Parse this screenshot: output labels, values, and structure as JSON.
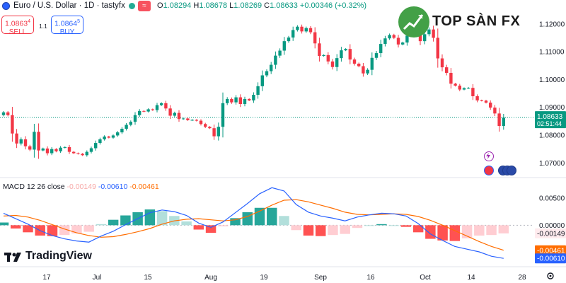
{
  "header": {
    "title": "Euro / U.S. Dollar · 1D · tastyfx",
    "wave_glyph": "≈",
    "open_label": "O",
    "open": "1.08294",
    "high_label": "H",
    "high": "1.08678",
    "low_label": "L",
    "low": "1.08269",
    "close_label": "C",
    "close": "1.08633",
    "change": "+0.00346 (+0.32%)"
  },
  "trade": {
    "sell_price_main": "1.0863",
    "sell_price_sup": "4",
    "sell_label": "SELL",
    "buy_price_main": "1.0864",
    "buy_price_sup": "5",
    "buy_label": "BUY",
    "spread": "1.1"
  },
  "watermark": {
    "brand": "TOP SÀN FX"
  },
  "footer": {
    "brand": "TradingView",
    "settings_icon": "gear-icon"
  },
  "price_axis": {
    "current_price": "1.08633",
    "countdown": "02:51:44"
  },
  "macd_header": {
    "label": "MACD 12 26 close",
    "hist": "-0.00149",
    "macd": "-0.00610",
    "signal": "-0.00461"
  },
  "colors": {
    "up": "#089981",
    "down": "#f23645",
    "macd": "#2962ff",
    "signal": "#ff6d00",
    "hist_up_strong": "#26a69a",
    "hist_up_weak": "#b2dfdb",
    "hist_down_strong": "#ff5252",
    "hist_down_weak": "#ffcdd2"
  },
  "chart_data": [
    {
      "type": "candlestick",
      "title": "Euro / U.S. Dollar · 1D · tastyfx",
      "x_ticks": [
        "17",
        "Jul",
        "15",
        "Aug",
        "19",
        "Sep",
        "16",
        "Oct",
        "14",
        "28"
      ],
      "y_ticks": [
        "1.07000",
        "1.08000",
        "1.09000",
        "1.10000",
        "1.11000",
        "1.12000"
      ],
      "ylim": [
        1.065,
        1.123
      ],
      "last_close": 1.08633,
      "closes": [
        1.0882,
        1.0872,
        1.0806,
        1.077,
        1.0785,
        1.076,
        1.0748,
        1.0812,
        1.0745,
        1.0752,
        1.0735,
        1.075,
        1.0742,
        1.0755,
        1.0757,
        1.074,
        1.0735,
        1.0733,
        1.0728,
        1.074,
        1.0753,
        1.0772,
        1.0785,
        1.0795,
        1.0791,
        1.0799,
        1.081,
        1.0823,
        1.0837,
        1.0848,
        1.0872,
        1.0887,
        1.0885,
        1.0893,
        1.089,
        1.0908,
        1.0915,
        1.0896,
        1.087,
        1.088,
        1.0858,
        1.086,
        1.0854,
        1.0855,
        1.0852,
        1.084,
        1.083,
        1.0825,
        1.0796,
        1.083,
        1.0915,
        1.093,
        1.0918,
        1.0936,
        1.0912,
        1.093,
        1.0925,
        1.0945,
        1.0976,
        1.1015,
        1.103,
        1.1053,
        1.1086,
        1.1104,
        1.1138,
        1.1151,
        1.1178,
        1.119,
        1.1173,
        1.1185,
        1.117,
        1.113,
        1.1085,
        1.1088,
        1.1065,
        1.1045,
        1.1077,
        1.1105,
        1.111,
        1.1072,
        1.1057,
        1.1048,
        1.1022,
        1.1035,
        1.1078,
        1.1095,
        1.1128,
        1.1148,
        1.116,
        1.115,
        1.1126,
        1.1133,
        1.1158,
        1.1163,
        1.117,
        1.1138,
        1.1163,
        1.118,
        1.115,
        1.1076,
        1.1044,
        1.1024,
        1.0985,
        1.0978,
        1.0964,
        1.0969,
        1.097,
        1.094,
        1.0925,
        1.0924,
        1.0917,
        1.0899,
        1.0878,
        1.0833,
        1.0863
      ]
    },
    {
      "type": "line",
      "title": "MACD 12 26 close",
      "y_ticks": [
        "0.00500",
        "0.00000"
      ],
      "ylim": [
        -0.0075,
        0.0085
      ],
      "series": [
        {
          "name": "MACD",
          "values": [
            0.0022,
            0.0012,
            0.0002,
            -0.001,
            -0.0019,
            -0.0025,
            -0.0029,
            -0.0031,
            -0.002,
            -0.0011,
            0.0001,
            0.0012,
            0.0023,
            0.0028,
            0.0025,
            0.0018,
            0.0004,
            -0.0004,
            0.0006,
            0.0023,
            0.004,
            0.0058,
            0.0069,
            0.0063,
            0.0038,
            0.0024,
            0.0017,
            0.0013,
            0.0008,
            0.0015,
            0.0019,
            0.0022,
            0.0021,
            0.0017,
            0.0003,
            -0.0016,
            -0.0028,
            -0.0039,
            -0.0044,
            -0.0049,
            -0.0057,
            -0.0061
          ]
        },
        {
          "name": "Signal",
          "values": [
            0.0017,
            0.0018,
            0.0015,
            0.0009,
            0.0001,
            -0.0007,
            -0.0014,
            -0.0019,
            -0.0022,
            -0.0021,
            -0.0017,
            -0.0012,
            -0.0006,
            0.0002,
            0.0008,
            0.0011,
            0.0012,
            0.001,
            0.0008,
            0.001,
            0.0016,
            0.0026,
            0.0037,
            0.0046,
            0.0047,
            0.0043,
            0.0037,
            0.0031,
            0.0024,
            0.002,
            0.0019,
            0.002,
            0.0021,
            0.002,
            0.0016,
            0.0009,
            0.0,
            -0.001,
            -0.002,
            -0.003,
            -0.0039,
            -0.0046
          ]
        },
        {
          "name": "Histogram",
          "values": [
            0.0005,
            -0.0006,
            -0.0013,
            -0.0019,
            -0.002,
            -0.0018,
            -0.0015,
            -0.0012,
            0.0002,
            0.001,
            0.0018,
            0.0024,
            0.0029,
            0.0026,
            0.0017,
            0.0007,
            -0.0008,
            -0.0014,
            -0.0002,
            0.0013,
            0.0024,
            0.0032,
            0.0032,
            0.0017,
            -0.0009,
            -0.0019,
            -0.002,
            -0.0018,
            -0.0016,
            -0.0005,
            0.0,
            0.0002,
            0.0,
            -0.0003,
            -0.0013,
            -0.0025,
            -0.0028,
            -0.0029,
            -0.0024,
            -0.0019,
            -0.0018,
            -0.0015
          ]
        }
      ]
    }
  ]
}
